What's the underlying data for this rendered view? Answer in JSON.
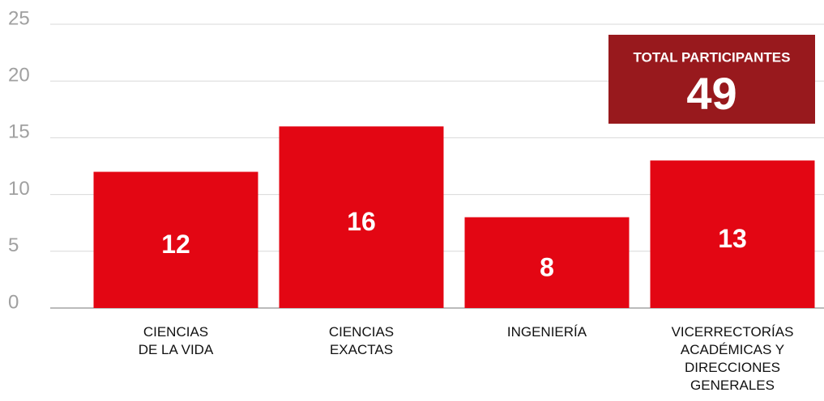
{
  "chart_data": {
    "type": "bar",
    "categories": [
      "CIENCIAS\nDE LA VIDA",
      "CIENCIAS\nEXACTAS",
      "INGENIERÍA",
      "VICERRECTORÍAS\nACADÉMICAS Y\nDIRECCIONES\nGENERALES"
    ],
    "values": [
      12,
      16,
      8,
      13
    ],
    "color": "#e30613",
    "ylim": [
      0,
      25
    ],
    "yticks": [
      0,
      5,
      10,
      15,
      20,
      25
    ],
    "grid": true,
    "annotation": {
      "label": "TOTAL PARTICIPANTES",
      "value": 49,
      "color": "#98191d"
    }
  }
}
